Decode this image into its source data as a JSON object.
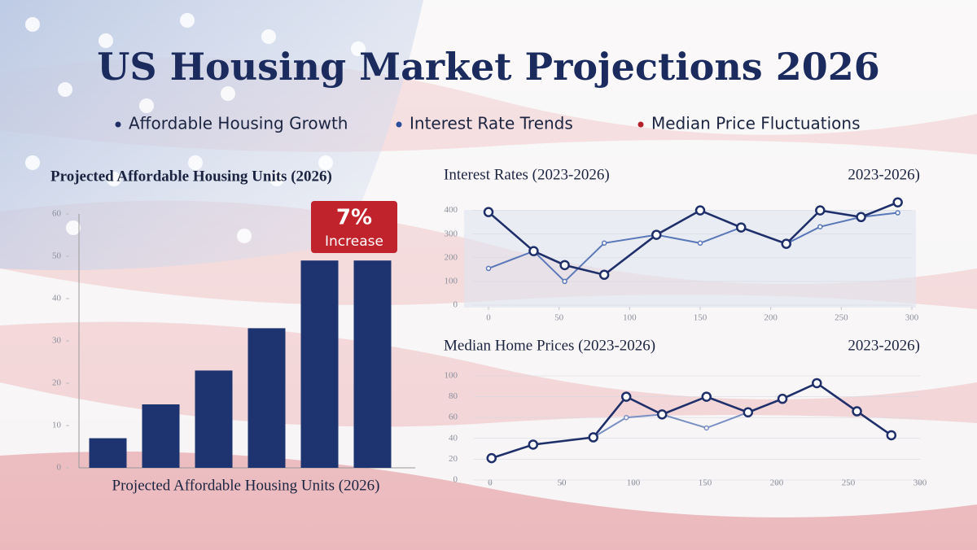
{
  "title": "US Housing Market Projections 2026",
  "legend": [
    {
      "name": "Affordable Housing Growth",
      "color": "#1f2f66"
    },
    {
      "name": "Interest Rate Trends",
      "color": "#2a4d9c"
    },
    {
      "name": "Median Price Fluctuations",
      "color": "#b3202a"
    }
  ],
  "chart_data": [
    {
      "type": "bar",
      "title": "Projected Affordable Housing Units (2026)",
      "xlabel": "Projected Affordable Housing Units (2026)",
      "categories": [
        null,
        null,
        null,
        null,
        null,
        null
      ],
      "values": [
        7,
        15,
        23,
        33,
        49,
        49
      ],
      "color": "#1e3470",
      "ylim": [
        0,
        60
      ],
      "yticks": [
        0,
        10,
        20,
        30,
        40,
        50,
        60
      ],
      "annotation": [
        "7%",
        "Increase"
      ],
      "annotation_color": "#c0232c"
    },
    {
      "type": "line",
      "title": "Interest Rates (2023-2026)",
      "subtitle": "2023-2026)",
      "x": [
        0,
        32,
        54,
        82,
        119,
        150,
        179,
        211,
        235,
        264,
        290
      ],
      "series": [
        {
          "name": "Interest Rate Trends",
          "color": "#1e2f6a",
          "values": [
            393,
            228,
            169,
            128,
            297,
            400,
            328,
            259,
            400,
            372,
            434
          ]
        },
        {
          "name": "Interest Rate Trends",
          "color": "#5a78b8",
          "values": [
            155,
            228,
            100,
            262,
            297,
            262,
            328,
            259,
            331,
            372,
            390
          ]
        }
      ],
      "xlim": [
        0,
        300
      ],
      "xticks": [
        0,
        50,
        100,
        150,
        200,
        250,
        300
      ],
      "ylim": [
        0,
        440
      ],
      "yticks": [
        0,
        100,
        200,
        300,
        400
      ]
    },
    {
      "type": "line",
      "title": "Median Home Prices (2023-2026)",
      "subtitle": "2023-2026)",
      "x": [
        1,
        30,
        72,
        95,
        120,
        151,
        180,
        204,
        228,
        256,
        280
      ],
      "series": [
        {
          "name": "Median Price Fluctuations",
          "color": "#1e2f6a",
          "values": [
            21,
            34,
            41,
            80,
            63,
            80,
            65,
            78,
            93,
            66,
            43
          ]
        },
        {
          "name": "Median Price Fluctuations",
          "color": "#7a8fc4",
          "values": [
            null,
            null,
            41,
            60,
            63,
            50,
            65,
            78,
            93,
            null,
            null
          ]
        }
      ],
      "xlim": [
        0,
        300
      ],
      "xticks": [
        0,
        50,
        100,
        150,
        200,
        250,
        300
      ],
      "ylim": [
        0,
        100
      ],
      "yticks": [
        0,
        20,
        40,
        60,
        80,
        100
      ]
    }
  ]
}
